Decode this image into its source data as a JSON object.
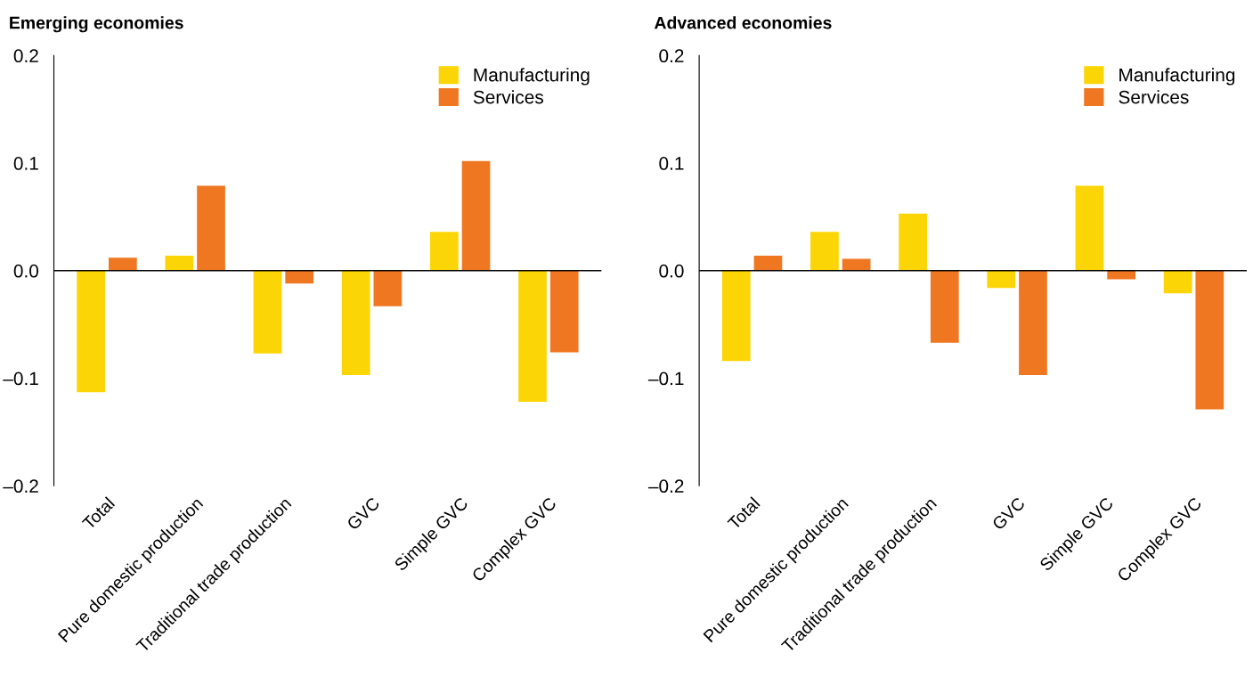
{
  "chart_data": [
    {
      "type": "bar",
      "title": "Emerging economies",
      "categories": [
        "Total",
        "Pure domestic production",
        "Traditional trade production",
        "GVC",
        "Simple GVC",
        "Complex GVC"
      ],
      "series": [
        {
          "name": "Manufacturing",
          "color": "#fbd505",
          "values": [
            -0.113,
            0.014,
            -0.077,
            -0.097,
            0.036,
            -0.122
          ]
        },
        {
          "name": "Services",
          "color": "#f07722",
          "values": [
            0.012,
            0.079,
            -0.012,
            -0.033,
            0.102,
            -0.076
          ]
        }
      ],
      "ylim": [
        -0.2,
        0.2
      ],
      "yticks": [
        {
          "value": -0.2,
          "label": "–0.2"
        },
        {
          "value": -0.1,
          "label": "–0.1"
        },
        {
          "value": 0,
          "label": "0.0"
        },
        {
          "value": 0.1,
          "label": "0.1"
        },
        {
          "value": 0.2,
          "label": "0.2"
        }
      ],
      "legend": "top right"
    },
    {
      "type": "bar",
      "title": "Advanced economies",
      "categories": [
        "Total",
        "Pure domestic production",
        "Traditional trade production",
        "GVC",
        "Simple GVC",
        "Complex GVC"
      ],
      "series": [
        {
          "name": "Manufacturing",
          "color": "#fbd505",
          "values": [
            -0.084,
            0.036,
            0.053,
            -0.016,
            0.079,
            -0.021
          ]
        },
        {
          "name": "Services",
          "color": "#f07722",
          "values": [
            0.014,
            0.011,
            -0.067,
            -0.097,
            -0.008,
            -0.129
          ]
        }
      ],
      "ylim": [
        -0.2,
        0.2
      ],
      "yticks": [
        {
          "value": -0.2,
          "label": "–0.2"
        },
        {
          "value": -0.1,
          "label": "–0.1"
        },
        {
          "value": 0,
          "label": "0.0"
        },
        {
          "value": 0.1,
          "label": "0.1"
        },
        {
          "value": 0.2,
          "label": "0.2"
        }
      ],
      "legend": "top right"
    }
  ]
}
